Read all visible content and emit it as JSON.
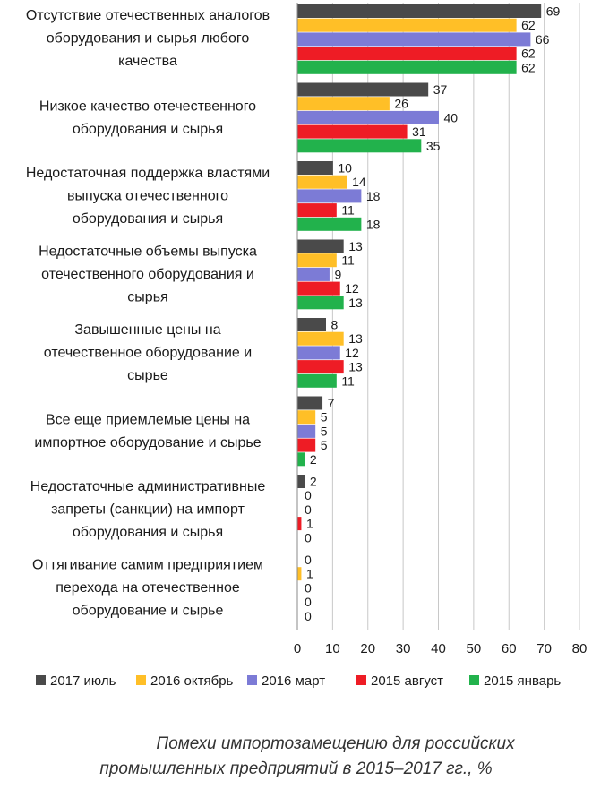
{
  "caption": {
    "line1": "Помехи импортозамещению для российских",
    "line2": "промышленных предприятий в 2015–2017 гг., %"
  },
  "chart_data": {
    "type": "bar",
    "orientation": "horizontal",
    "xlim": [
      0,
      80
    ],
    "xticks": [
      0,
      10,
      20,
      30,
      40,
      50,
      60,
      70,
      80
    ],
    "grid": true,
    "legend_position": "bottom",
    "categories": [
      [
        "Отсутствие отечественных аналогов",
        "оборудования и сырья любого",
        "качества"
      ],
      [
        "Низкое качество отечественного",
        "оборудования и сырья"
      ],
      [
        "Недостаточная поддержка властями",
        "выпуска отечественного",
        "оборудования и сырья"
      ],
      [
        "Недостаточные объемы выпуска",
        "отечественного оборудования и",
        "сырья"
      ],
      [
        "Завышенные цены на",
        "отечественное оборудование и",
        "сырье"
      ],
      [
        "Все еще приемлемые цены на",
        "импортное оборудование и сырье"
      ],
      [
        "Недостаточные административные",
        "запреты (санкции) на импорт",
        "оборудования и сырья"
      ],
      [
        "Оттягивание самим предприятием",
        "перехода на отечественное",
        "оборудование и сырье"
      ]
    ],
    "series": [
      {
        "name": "2017 июль",
        "color": "#4a4a4a",
        "values": [
          69,
          37,
          10,
          13,
          8,
          7,
          2,
          0
        ]
      },
      {
        "name": "2016 октябрь",
        "color": "#ffbf27",
        "values": [
          62,
          26,
          14,
          11,
          13,
          5,
          0,
          1
        ]
      },
      {
        "name": "2016 март",
        "color": "#7c7bd6",
        "values": [
          66,
          40,
          18,
          9,
          12,
          5,
          0,
          0
        ]
      },
      {
        "name": "2015 август",
        "color": "#ee1c25",
        "values": [
          62,
          31,
          11,
          12,
          13,
          5,
          1,
          0
        ]
      },
      {
        "name": "2015 январь",
        "color": "#22b24c",
        "values": [
          62,
          35,
          18,
          13,
          11,
          2,
          0,
          0
        ]
      }
    ]
  }
}
